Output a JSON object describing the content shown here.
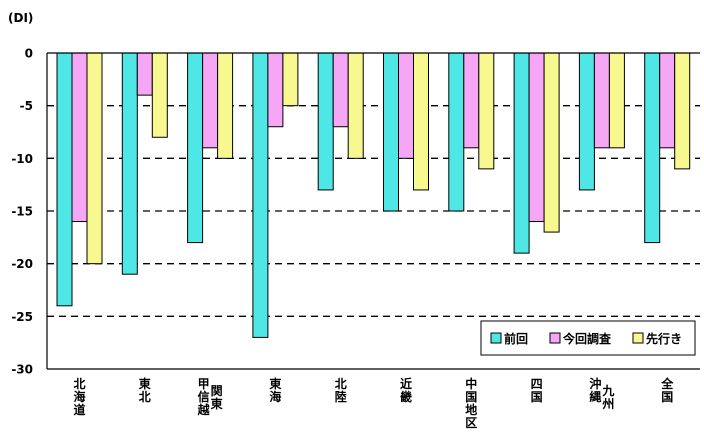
{
  "chart_data": {
    "type": "bar",
    "title": "",
    "y_unit_label": "(DI)",
    "ylim": [
      -30,
      0
    ],
    "yticks": [
      "0",
      "-5",
      "-10",
      "-15",
      "-20",
      "-25",
      "-30"
    ],
    "grid": "dashed-horizontal",
    "legend_position": "bottom-right",
    "categories": [
      [
        "北海道"
      ],
      [
        "東北"
      ],
      [
        "甲信越",
        "関東"
      ],
      [
        "東海"
      ],
      [
        "北陸"
      ],
      [
        "近畿"
      ],
      [
        "中国地区"
      ],
      [
        "四国"
      ],
      [
        "沖縄",
        "九州"
      ],
      [
        "全国"
      ]
    ],
    "series": [
      {
        "name": "前回",
        "color": "#4fe6e6",
        "values": [
          -24,
          -21,
          -18,
          -27,
          -13,
          -15,
          -15,
          -19,
          -13,
          -18
        ]
      },
      {
        "name": "今回調査",
        "color": "#f5a6f5",
        "values": [
          -16,
          -4,
          -9,
          -7,
          -7,
          -10,
          -9,
          -16,
          -9,
          -9
        ]
      },
      {
        "name": "先行き",
        "color": "#f8f890",
        "values": [
          -20,
          -8,
          -10,
          -5,
          -10,
          -13,
          -11,
          -17,
          -9,
          -11
        ]
      }
    ]
  }
}
